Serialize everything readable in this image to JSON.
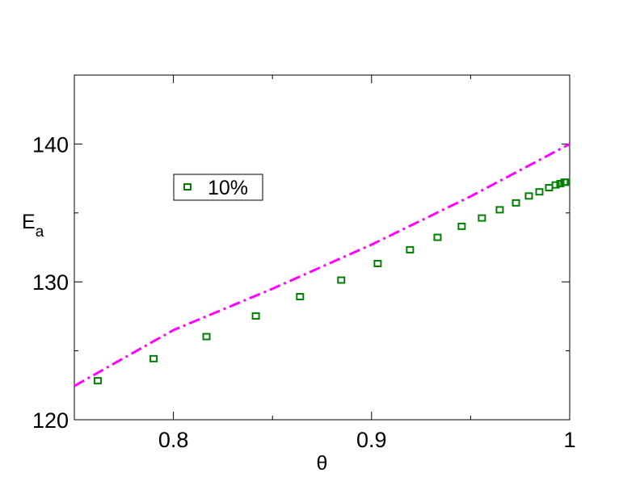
{
  "chart_data": {
    "type": "scatter",
    "xlabel": "θ",
    "ylabel": {
      "text": "E",
      "sub": "a"
    },
    "xlim": [
      0.75,
      1.0
    ],
    "ylim": [
      120,
      145
    ],
    "xticks": [
      0.8,
      0.9,
      1
    ],
    "yticks": [
      120,
      130,
      140
    ],
    "xminor": [
      0.85,
      0.95
    ],
    "yminor": [
      125,
      135
    ],
    "legend": "upper left",
    "series": [
      {
        "name": "10%",
        "kind": "scatter",
        "color": "#008000",
        "x": [
          0.7618,
          0.79,
          0.8167,
          0.8416,
          0.8639,
          0.8847,
          0.9031,
          0.9194,
          0.9333,
          0.9455,
          0.9557,
          0.9647,
          0.9729,
          0.9794,
          0.9847,
          0.9896,
          0.9929,
          0.9953,
          0.9973,
          0.998
        ],
        "values": [
          122.8,
          124.4,
          126.0,
          127.5,
          128.9,
          130.1,
          131.3,
          132.3,
          133.2,
          134.0,
          134.6,
          135.2,
          135.7,
          136.2,
          136.5,
          136.8,
          137.0,
          137.1,
          137.2,
          137.2
        ]
      },
      {
        "kind": "line",
        "color": "#ff00ff",
        "x": [
          0.75,
          0.8,
          0.85,
          0.9,
          0.95,
          1.0
        ],
        "values": [
          122.45,
          126.5,
          129.5,
          132.7,
          136.2,
          140.0
        ]
      }
    ]
  }
}
